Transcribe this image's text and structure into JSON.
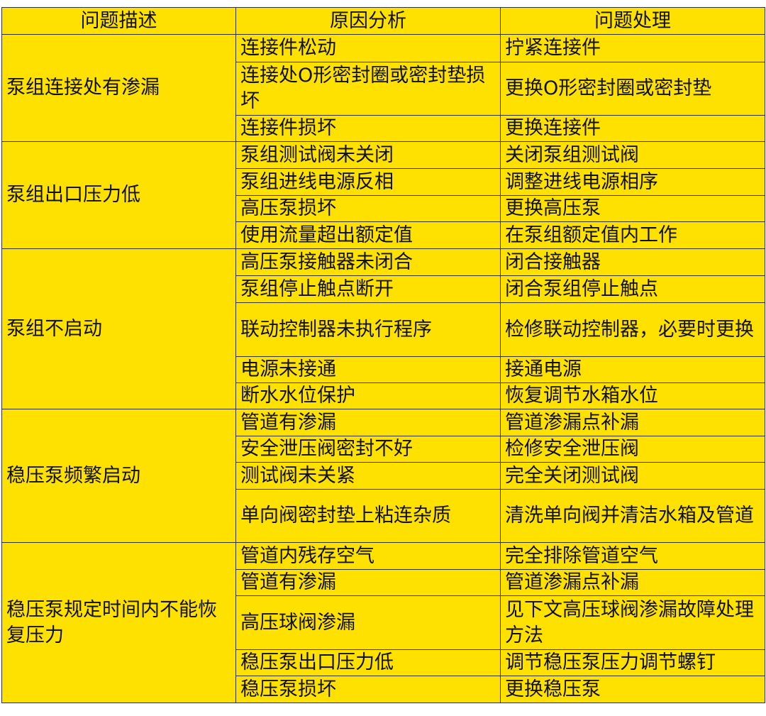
{
  "header": [
    "问题描述",
    "原因分析",
    "问题处理"
  ],
  "colors": {
    "cell_background": "#FFE100",
    "border": "#333333",
    "text": "#111111"
  },
  "groups": [
    {
      "problem": "泵组连接处有渗漏",
      "items": [
        {
          "cause": "连接件松动",
          "fix": "拧紧连接件"
        },
        {
          "cause": "连接处O形密封圈或密封垫损坏",
          "fix": "更换O形密封圈或密封垫"
        },
        {
          "cause": "连接件损坏",
          "fix": "更换连接件"
        }
      ]
    },
    {
      "problem": "泵组出口压力低",
      "items": [
        {
          "cause": "泵组测试阀未关闭",
          "fix": "关闭泵组测试阀"
        },
        {
          "cause": "泵组进线电源反相",
          "fix": "调整进线电源相序"
        },
        {
          "cause": "高压泵损坏",
          "fix": "更换高压泵"
        },
        {
          "cause": "使用流量超出额定值",
          "fix": "在泵组额定值内工作"
        }
      ]
    },
    {
      "problem": "泵组不启动",
      "items": [
        {
          "cause": "高压泵接触器未闭合",
          "fix": "闭合接触器"
        },
        {
          "cause": "泵组停止触点断开",
          "fix": "闭合泵组停止触点"
        },
        {
          "cause": "联动控制器未执行程序",
          "fix": "检修联动控制器，必要时更换"
        },
        {
          "cause": "电源未接通",
          "fix": "接通电源"
        },
        {
          "cause": "断水水位保护",
          "fix": "恢复调节水箱水位"
        }
      ]
    },
    {
      "problem": "稳压泵频繁启动",
      "items": [
        {
          "cause": "管道有渗漏",
          "fix": "管道渗漏点补漏"
        },
        {
          "cause": "安全泄压阀密封不好",
          "fix": "检修安全泄压阀"
        },
        {
          "cause": "测试阀未关紧",
          "fix": "完全关闭测试阀"
        },
        {
          "cause": "单向阀密封垫上粘连杂质",
          "fix": "清洗单向阀并清洁水箱及管道"
        }
      ]
    },
    {
      "problem": "稳压泵规定时间内不能恢复压力",
      "items": [
        {
          "cause": "管道内残存空气",
          "fix": "完全排除管道空气"
        },
        {
          "cause": "管道有渗漏",
          "fix": "管道渗漏点补漏"
        },
        {
          "cause": "高压球阀渗漏",
          "fix": "见下文高压球阀渗漏故障处理方法"
        },
        {
          "cause": "稳压泵出口压力低",
          "fix": "调节稳压泵压力调节螺钉"
        },
        {
          "cause": "稳压泵损坏",
          "fix": "更换稳压泵"
        }
      ]
    }
  ]
}
